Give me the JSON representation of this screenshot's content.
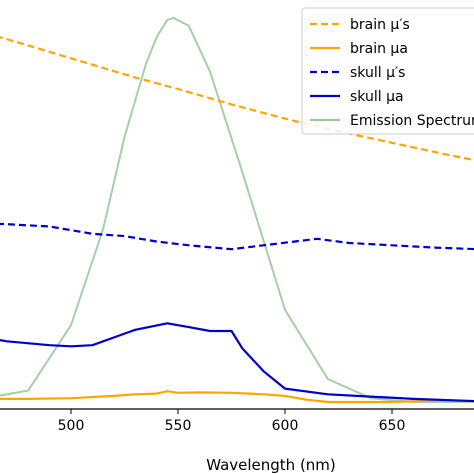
{
  "chart_data": {
    "type": "line",
    "xlabel": "Wavelength (nm)",
    "ylabel": "",
    "title": "",
    "xlim": [
      450,
      690
    ],
    "ylim": [
      0,
      1
    ],
    "grid": false,
    "legend_position": "top-right",
    "x_ticks": [
      500,
      550,
      600,
      650
    ],
    "series": [
      {
        "name": "brain μ′s",
        "color": "#FFA500",
        "style": "dashed",
        "x": [
          450,
          470,
          500,
          530,
          550,
          575,
          600,
          625,
          650,
          675,
          690
        ],
        "y": [
          0.975,
          0.945,
          0.895,
          0.845,
          0.815,
          0.775,
          0.738,
          0.705,
          0.675,
          0.645,
          0.628
        ]
      },
      {
        "name": "brain μa",
        "color": "#FFA500",
        "style": "solid",
        "x": [
          450,
          460,
          480,
          500,
          520,
          530,
          540,
          545,
          550,
          560,
          575,
          590,
          600,
          610,
          620,
          630,
          650,
          670,
          690
        ],
        "y": [
          0.01,
          0.008,
          0.008,
          0.01,
          0.016,
          0.02,
          0.022,
          0.028,
          0.024,
          0.025,
          0.024,
          0.02,
          0.016,
          0.006,
          0.0,
          0.0,
          0.0,
          0.004,
          0.002
        ]
      },
      {
        "name": "skull μ′s",
        "color": "#0000CD",
        "style": "dashed",
        "x": [
          450,
          470,
          490,
          510,
          525,
          540,
          555,
          575,
          590,
          615,
          630,
          650,
          670,
          690
        ],
        "y": [
          0.468,
          0.463,
          0.457,
          0.438,
          0.432,
          0.418,
          0.408,
          0.398,
          0.408,
          0.425,
          0.414,
          0.408,
          0.402,
          0.398
        ]
      },
      {
        "name": "skull μa",
        "color": "#0000CD",
        "style": "solid",
        "x": [
          450,
          460,
          470,
          490,
          500,
          510,
          520,
          530,
          545,
          555,
          565,
          575,
          580,
          590,
          600,
          620,
          640,
          660,
          690
        ],
        "y": [
          0.198,
          0.168,
          0.158,
          0.148,
          0.145,
          0.148,
          0.168,
          0.188,
          0.205,
          0.195,
          0.185,
          0.185,
          0.14,
          0.08,
          0.035,
          0.02,
          0.014,
          0.008,
          0.002
        ]
      },
      {
        "name": "Emission Spectrum",
        "color": "#99CC99",
        "style": "solid",
        "x": [
          450,
          480,
          500,
          515,
          525,
          535,
          540,
          545,
          548,
          555,
          565,
          580,
          600,
          620,
          640,
          660,
          690
        ],
        "y": [
          0.0,
          0.03,
          0.2,
          0.45,
          0.69,
          0.88,
          0.95,
          0.995,
          1.0,
          0.98,
          0.86,
          0.6,
          0.24,
          0.06,
          0.01,
          0.0,
          0.0
        ]
      }
    ]
  }
}
